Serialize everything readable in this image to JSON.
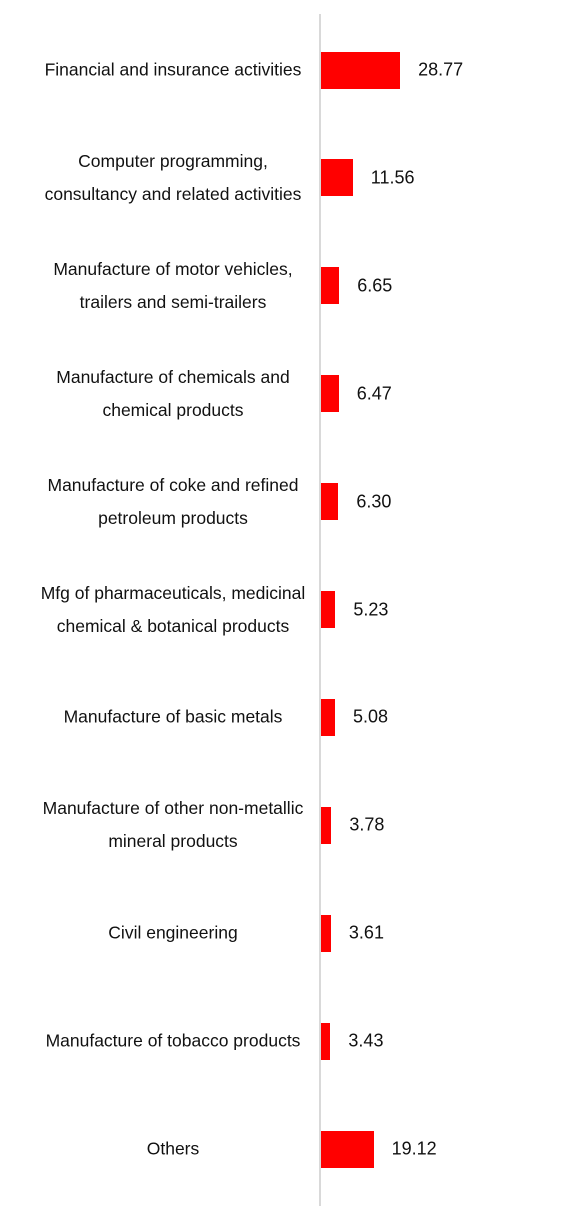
{
  "chart_data": {
    "type": "bar",
    "orientation": "horizontal",
    "color": "#ff0000",
    "categories": [
      "Financial and insurance activities",
      "Computer programming, consultancy and related activities",
      "Manufacture of motor vehicles, trailers and semi-trailers",
      "Manufacture of chemicals and chemical products",
      "Manufacture of coke and refined petroleum products",
      "Mfg of pharmaceuticals, medicinal chemical & botanical products",
      "Manufacture of basic metals",
      "Manufacture of other non-metallic mineral products",
      "Civil engineering",
      "Manufacture of tobacco products",
      "Others"
    ],
    "values": [
      28.77,
      11.56,
      6.65,
      6.47,
      6.3,
      5.23,
      5.08,
      3.78,
      3.61,
      3.43,
      19.12
    ],
    "value_labels": [
      "28.77",
      "11.56",
      "6.65",
      "6.47",
      "6.30",
      "5.23",
      "5.08",
      "3.78",
      "3.61",
      "3.43",
      "19.12"
    ]
  }
}
